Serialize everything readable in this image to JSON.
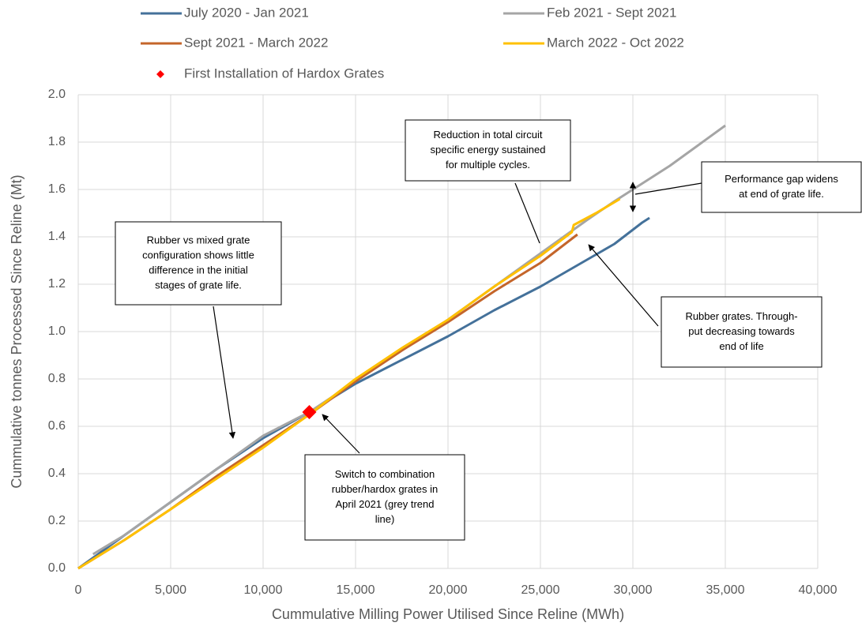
{
  "chart_data": {
    "type": "line",
    "x_label": "Cummulative Milling Power Utilised Since Reline (MWh)",
    "y_label": "Cummulative tonnes Processed Since Reline (Mt)",
    "xlim": [
      0,
      40000
    ],
    "ylim": [
      0,
      2
    ],
    "xticks": [
      0,
      {
        "value": 5000,
        "label": "5,000"
      },
      {
        "value": 10000,
        "label": "10,000"
      },
      {
        "value": 15000,
        "label": "15,000"
      },
      {
        "value": 20000,
        "label": "20,000"
      },
      {
        "value": 25000,
        "label": "25,000"
      },
      {
        "value": 30000,
        "label": "30,000"
      },
      {
        "value": 35000,
        "label": "35,000"
      },
      {
        "value": 40000,
        "label": "40,000"
      }
    ],
    "yticks": [
      {
        "value": 0,
        "label": "0.0"
      },
      0.2,
      0.4,
      0.6,
      0.8,
      {
        "value": 1,
        "label": "1.0"
      },
      1.2,
      1.4,
      1.6,
      1.8,
      {
        "value": 2,
        "label": "2.0"
      }
    ],
    "grid": true,
    "legend": "top",
    "series": [
      {
        "name": "July 2020 - Jan 2021",
        "color": "#44719a",
        "x": [
          0,
          2500,
          5000,
          7500,
          10000,
          12500,
          15000,
          17500,
          20000,
          22500,
          25000,
          27000,
          29000,
          30000,
          30500,
          30900
        ],
        "values": [
          0,
          0.14,
          0.28,
          0.42,
          0.55,
          0.66,
          0.78,
          0.88,
          0.98,
          1.09,
          1.19,
          1.28,
          1.37,
          1.43,
          1.46,
          1.48
        ]
      },
      {
        "name": "Feb 2021 - Sept 2021",
        "color": "#a5a5a5",
        "x": [
          800,
          2500,
          5000,
          7500,
          10000,
          12500,
          15000,
          17500,
          20000,
          22500,
          25000,
          27500,
          29000,
          30000,
          32000,
          35000
        ],
        "values": [
          0.06,
          0.14,
          0.28,
          0.42,
          0.56,
          0.66,
          0.79,
          0.92,
          1.05,
          1.19,
          1.33,
          1.47,
          1.55,
          1.6,
          1.7,
          1.87
        ]
      },
      {
        "name": "Sept 2021 - March 2022",
        "color": "#c4652a",
        "x": [
          0,
          2500,
          5000,
          7500,
          10000,
          12500,
          15000,
          17500,
          20000,
          22500,
          25000,
          27000
        ],
        "values": [
          0,
          0.12,
          0.25,
          0.39,
          0.52,
          0.65,
          0.79,
          0.92,
          1.04,
          1.17,
          1.29,
          1.41
        ]
      },
      {
        "name": "March 2022 - Oct 2022",
        "color": "#ffc000",
        "x": [
          0,
          2500,
          5000,
          7500,
          10000,
          12500,
          15000,
          17500,
          20000,
          22500,
          25000,
          26700,
          26800,
          28000,
          29300
        ],
        "values": [
          0,
          0.12,
          0.25,
          0.38,
          0.51,
          0.65,
          0.8,
          0.93,
          1.05,
          1.19,
          1.32,
          1.42,
          1.45,
          1.5,
          1.56
        ]
      }
    ],
    "marker": {
      "name": "First Installation of Hardox Grates",
      "color": "#ff0000",
      "x": 12500,
      "y": 0.66
    },
    "annotations": [
      {
        "lines": [
          "Reduction in total circuit",
          "specific energy sustained",
          "for multiple cycles."
        ]
      },
      {
        "lines": [
          "Performance gap widens",
          "at end of grate life."
        ]
      },
      {
        "lines": [
          "Rubber vs mixed grate",
          "configuration shows little",
          "difference in the initial",
          "stages of grate life."
        ]
      },
      {
        "lines": [
          "Rubber grates. Through-",
          "put decreasing towards",
          "end of life"
        ]
      },
      {
        "lines": [
          "Switch to combination",
          "rubber/hardox grates in",
          "April 2021 (grey trend",
          "line)"
        ]
      }
    ]
  }
}
